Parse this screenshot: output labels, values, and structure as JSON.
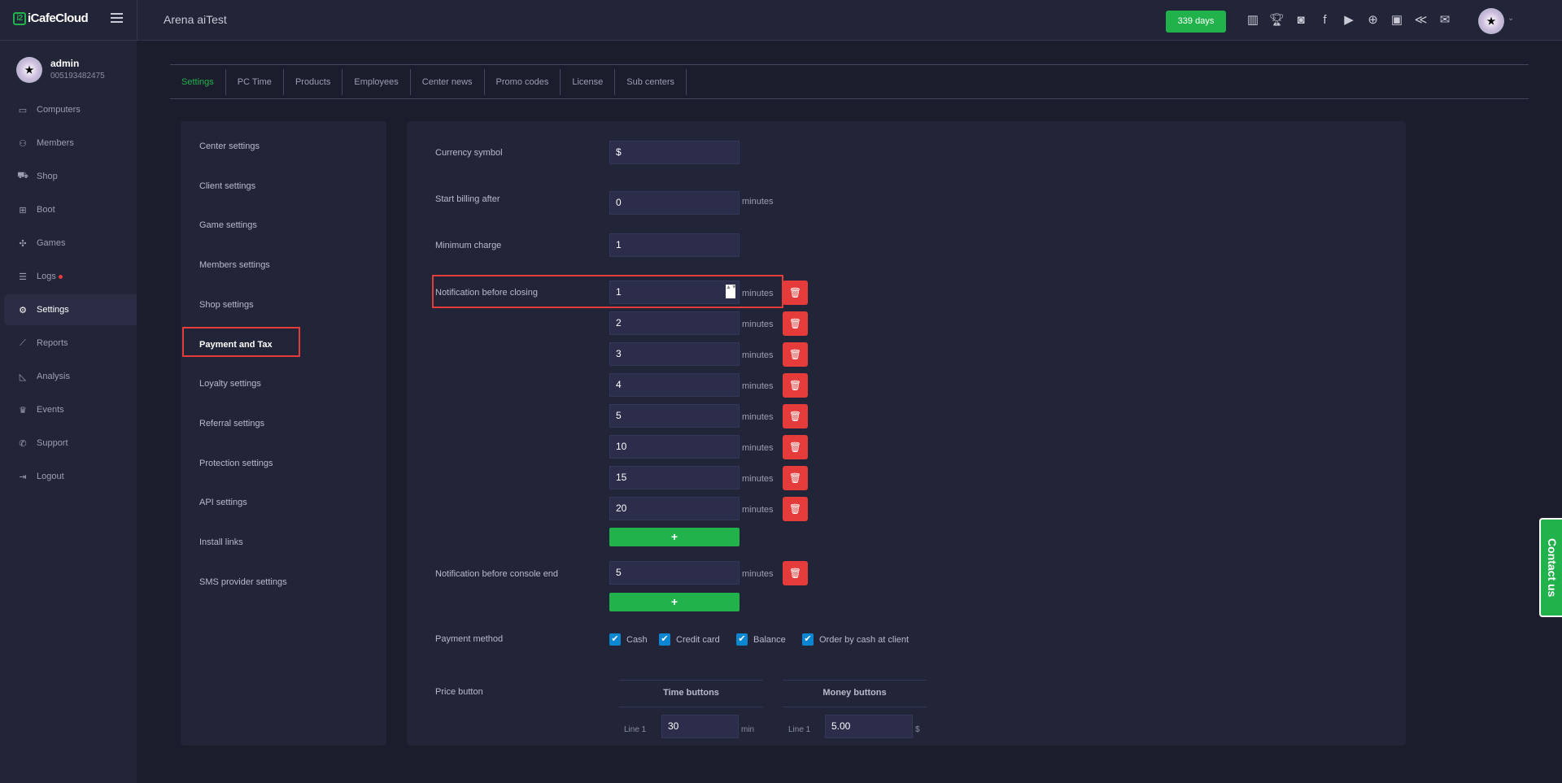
{
  "header": {
    "brand": "iCafeCloud",
    "title": "Arena aiTest",
    "days_badge": "339 days",
    "icons": [
      "ranking-icon",
      "trophy-icon",
      "discord-icon",
      "facebook-icon",
      "youtube-icon",
      "globe-icon",
      "icafe-logo-icon",
      "ggrock-icon",
      "mail-icon"
    ]
  },
  "user": {
    "name": "admin",
    "id": "005193482475"
  },
  "sidebar": {
    "items": [
      {
        "label": "Computers",
        "icon": "monitor-icon"
      },
      {
        "label": "Members",
        "icon": "users-icon"
      },
      {
        "label": "Shop",
        "icon": "cart-icon"
      },
      {
        "label": "Boot",
        "icon": "windows-icon"
      },
      {
        "label": "Games",
        "icon": "gamepad-icon"
      },
      {
        "label": "Logs",
        "icon": "list-icon"
      },
      {
        "label": "Settings",
        "icon": "gear-icon",
        "active": true
      },
      {
        "label": "Reports",
        "icon": "chart-line-icon"
      },
      {
        "label": "Analysis",
        "icon": "chart-area-icon"
      },
      {
        "label": "Events",
        "icon": "crown-icon"
      },
      {
        "label": "Support",
        "icon": "phone-icon"
      },
      {
        "label": "Logout",
        "icon": "logout-icon"
      }
    ]
  },
  "tabs": [
    "Settings",
    "PC Time",
    "Products",
    "Employees",
    "Center news",
    "Promo codes",
    "License",
    "Sub centers"
  ],
  "settings_menu": [
    "Center settings",
    "Client settings",
    "Game settings",
    "Members settings",
    "Shop settings",
    "Payment and Tax",
    "Loyalty settings",
    "Referral settings",
    "Protection settings",
    "API settings",
    "Install links",
    "SMS provider settings"
  ],
  "form": {
    "currency_label": "Currency symbol",
    "currency": "$",
    "start_billing_label": "Start billing after",
    "start_billing": "0",
    "min_charge_label": "Minimum charge",
    "min_charge": "1",
    "notif_label": "Notification before closing",
    "notif_values": [
      "1",
      "2",
      "3",
      "4",
      "5",
      "10",
      "15",
      "20"
    ],
    "console_label": "Notification before console end",
    "console_values": [
      "5"
    ],
    "minutes": "minutes",
    "add": "+",
    "payment_label": "Payment method",
    "payment_methods": [
      {
        "label": "Cash",
        "checked": true
      },
      {
        "label": "Credit card",
        "checked": true
      },
      {
        "label": "Balance",
        "checked": true
      },
      {
        "label": "Order by cash at client",
        "checked": true
      }
    ],
    "price_label": "Price button",
    "time_header": "Time buttons",
    "money_header": "Money buttons",
    "line1": "Line 1",
    "time_value": "30",
    "time_unit": "min",
    "money_value": "5.00",
    "money_unit": "$"
  },
  "contact": "Contact us",
  "colors": {
    "accent": "#22b24c",
    "danger": "#e53b3b",
    "checkbox": "#0b87d1"
  }
}
